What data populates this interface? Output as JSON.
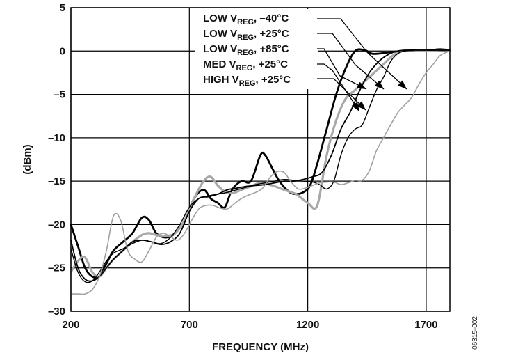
{
  "chart_data": {
    "type": "line",
    "xlabel": "FREQUENCY (MHz)",
    "ylabel": "(dBm)",
    "xlim": [
      200,
      1800
    ],
    "ylim": [
      -30,
      5
    ],
    "xticks": [
      200,
      700,
      1200,
      1700
    ],
    "xtick_labels": [
      "200",
      "700",
      "1200",
      "1700"
    ],
    "yticks": [
      5,
      0,
      -5,
      -10,
      -15,
      -20,
      -25,
      -30
    ],
    "ytick_labels": [
      "5",
      "0",
      "–5",
      "–10",
      "–15",
      "–20",
      "–25",
      "–30"
    ],
    "grid": true,
    "legend_position": "top-right",
    "legend": [
      {
        "main": "LOW V",
        "sub": "REG",
        "rest": ", –40°C"
      },
      {
        "main": "LOW V",
        "sub": "REG",
        "rest": ", +25°C"
      },
      {
        "main": "LOW V",
        "sub": "REG",
        "rest": ", +85°C"
      },
      {
        "main": "MED V",
        "sub": "REG",
        "rest": ", +25°C"
      },
      {
        "main": "HIGH V",
        "sub": "REG",
        "rest": ", +25°C"
      }
    ],
    "figure_id": "06315-002",
    "series": [
      {
        "color": "#000000",
        "width": 2.8,
        "x": [
          200,
          230,
          260,
          290,
          320,
          350,
          380,
          420,
          460,
          500,
          530,
          560,
          600,
          640,
          680,
          720,
          760,
          790,
          820,
          850,
          880,
          920,
          960,
          1000,
          1020,
          1050,
          1080,
          1120,
          1150,
          1180,
          1210,
          1240,
          1280,
          1320,
          1360,
          1400,
          1440,
          1470,
          1500,
          1530,
          1560,
          1600,
          1640,
          1680,
          1720,
          1760,
          1800
        ],
        "y": [
          -20,
          -22.5,
          -25,
          -26,
          -26,
          -24.5,
          -23,
          -22,
          -21,
          -19.2,
          -19.5,
          -21,
          -21.5,
          -21,
          -19.5,
          -17,
          -16,
          -17,
          -17.5,
          -18,
          -16,
          -15,
          -15,
          -12,
          -12,
          -13.5,
          -15,
          -16.2,
          -16.5,
          -16.3,
          -15.5,
          -13,
          -9,
          -5,
          -2,
          0,
          0.1,
          -0.3,
          -0.3,
          -0.2,
          -0.1,
          0,
          0,
          0,
          0.1,
          0.2,
          0.1
        ]
      },
      {
        "color": "#a8a8a8",
        "width": 3.2,
        "x": [
          200,
          230,
          260,
          290,
          320,
          350,
          380,
          420,
          460,
          500,
          530,
          560,
          600,
          640,
          680,
          720,
          760,
          790,
          820,
          850,
          880,
          920,
          960,
          1000,
          1050,
          1100,
          1150,
          1200,
          1240,
          1280,
          1320,
          1360,
          1400,
          1440,
          1480,
          1520,
          1560,
          1600,
          1640,
          1680,
          1720,
          1760,
          1800
        ],
        "y": [
          -25.5,
          -24.2,
          -23.8,
          -25.5,
          -26,
          -25,
          -24,
          -23,
          -22,
          -21.2,
          -21,
          -21.2,
          -21.3,
          -21,
          -19.5,
          -17,
          -15,
          -14.5,
          -15.5,
          -16.2,
          -16.4,
          -16,
          -15.6,
          -15.2,
          -15.5,
          -16,
          -16.5,
          -17.5,
          -17.8,
          -12,
          -8,
          -5.5,
          -4.5,
          -3.5,
          -2.5,
          -1.5,
          -0.5,
          0,
          0.1,
          0,
          0,
          0.1,
          0.1
        ]
      },
      {
        "color": "#000000",
        "width": 1.8,
        "x": [
          200,
          230,
          260,
          290,
          320,
          350,
          380,
          420,
          460,
          500,
          540,
          580,
          620,
          660,
          700,
          740,
          780,
          820,
          860,
          900,
          940,
          980,
          1020,
          1060,
          1100,
          1140,
          1180,
          1220,
          1260,
          1300,
          1340,
          1380,
          1420,
          1460,
          1500,
          1540,
          1580,
          1620,
          1660,
          1700,
          1740,
          1780,
          1800
        ],
        "y": [
          -21.8,
          -25,
          -26.3,
          -26.5,
          -26,
          -25,
          -24,
          -23,
          -22,
          -21.8,
          -22,
          -22.3,
          -22,
          -21,
          -18.5,
          -17,
          -16.8,
          -16.5,
          -16,
          -15.8,
          -15.6,
          -15.5,
          -15.4,
          -15.2,
          -15,
          -15,
          -14.8,
          -14.5,
          -14,
          -12,
          -9,
          -7,
          -4.5,
          -2.5,
          -1.2,
          -0.4,
          0,
          0.1,
          0.1,
          0.1,
          0.1,
          0.1,
          0.1
        ]
      },
      {
        "color": "#000000",
        "width": 1.4,
        "x": [
          200,
          230,
          260,
          290,
          320,
          350,
          380,
          420,
          460,
          500,
          540,
          580,
          620,
          660,
          700,
          740,
          780,
          820,
          860,
          900,
          940,
          980,
          1020,
          1060,
          1100,
          1140,
          1180,
          1220,
          1250,
          1280,
          1310,
          1340,
          1370,
          1400,
          1430,
          1460,
          1490,
          1520,
          1550,
          1580,
          1610,
          1640,
          1680,
          1720,
          1760,
          1800
        ],
        "y": [
          -22.8,
          -25.5,
          -26.6,
          -26.5,
          -25.5,
          -24.2,
          -23.3,
          -22.8,
          -22.2,
          -21.8,
          -22,
          -22.2,
          -21.5,
          -20,
          -18,
          -17,
          -16.7,
          -16.5,
          -16.3,
          -16,
          -15.7,
          -15.4,
          -15.2,
          -15,
          -14.8,
          -14.9,
          -15,
          -15.1,
          -15.4,
          -15.9,
          -15,
          -12,
          -10,
          -9,
          -8.5,
          -6.5,
          -4.5,
          -3,
          -1.2,
          -0.3,
          0,
          0.1,
          0.1,
          0.1,
          0.1,
          0.1
        ]
      },
      {
        "color": "#a0a0a0",
        "width": 1.6,
        "x": [
          200,
          230,
          260,
          290,
          320,
          350,
          380,
          410,
          440,
          470,
          500,
          530,
          560,
          590,
          620,
          650,
          680,
          710,
          740,
          770,
          800,
          830,
          860,
          890,
          920,
          950,
          980,
          1010,
          1040,
          1070,
          1100,
          1130,
          1160,
          1190,
          1220,
          1250,
          1280,
          1310,
          1340,
          1370,
          1400,
          1430,
          1460,
          1490,
          1520,
          1550,
          1580,
          1610,
          1640,
          1670,
          1700,
          1730,
          1760,
          1800
        ],
        "y": [
          -28,
          -28,
          -28,
          -27.5,
          -26,
          -23,
          -19,
          -19.5,
          -23,
          -24,
          -24.3,
          -23,
          -21.5,
          -21,
          -21.4,
          -21.8,
          -21,
          -19.5,
          -18.2,
          -17.8,
          -17.8,
          -18.1,
          -18.2,
          -17.6,
          -17,
          -16.6,
          -16.3,
          -15.8,
          -14.6,
          -13.9,
          -14,
          -15.1,
          -15.9,
          -15.8,
          -15.5,
          -15.2,
          -15.1,
          -15.1,
          -15.4,
          -15.2,
          -14.9,
          -14.9,
          -13.8,
          -11.5,
          -10,
          -8.5,
          -7.1,
          -6.2,
          -5.3,
          -3.8,
          -2.5,
          -1.5,
          -0.5,
          0
        ]
      }
    ]
  }
}
